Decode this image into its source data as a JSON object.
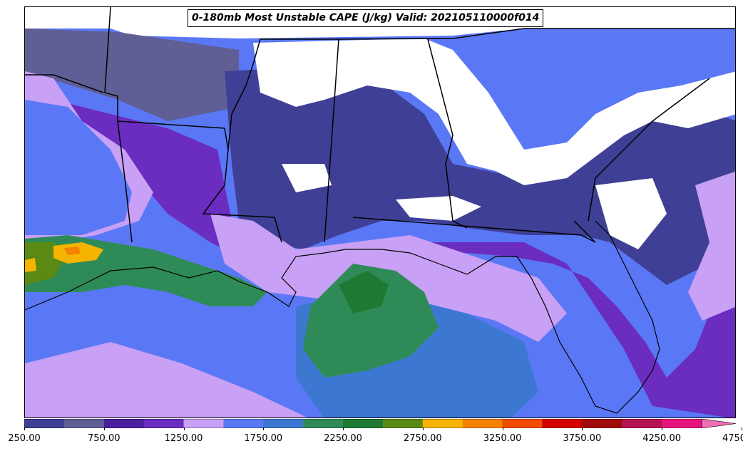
{
  "title": "0-180mb Most Unstable CAPE (J/kg) Valid: 202105110000f014",
  "colorbar": {
    "min": 250,
    "max": 4750,
    "step": 250,
    "extend": "max",
    "colors": [
      "#3f3f96",
      "#5f5f96",
      "#4b1fa0",
      "#6b2cc0",
      "#c8a0f5",
      "#5a78f5",
      "#3c78d2",
      "#2e8b57",
      "#1e7a32",
      "#5a8a14",
      "#f5b400",
      "#f58200",
      "#f04b00",
      "#d20000",
      "#a00a0a",
      "#b41450",
      "#e6147d",
      "#f06eb4"
    ],
    "tick_labels": [
      "250.00",
      "750.00",
      "1250.00",
      "1750.00",
      "2250.00",
      "2750.00",
      "3250.00",
      "3750.00",
      "4250.00",
      "4750.00"
    ],
    "tick_values": [
      250,
      750,
      1250,
      1750,
      2250,
      2750,
      3250,
      3750,
      4250,
      4750
    ]
  },
  "map": {
    "region": "Southeastern United States and Gulf of Mexico",
    "variable": "Most Unstable CAPE",
    "units": "J/kg"
  }
}
